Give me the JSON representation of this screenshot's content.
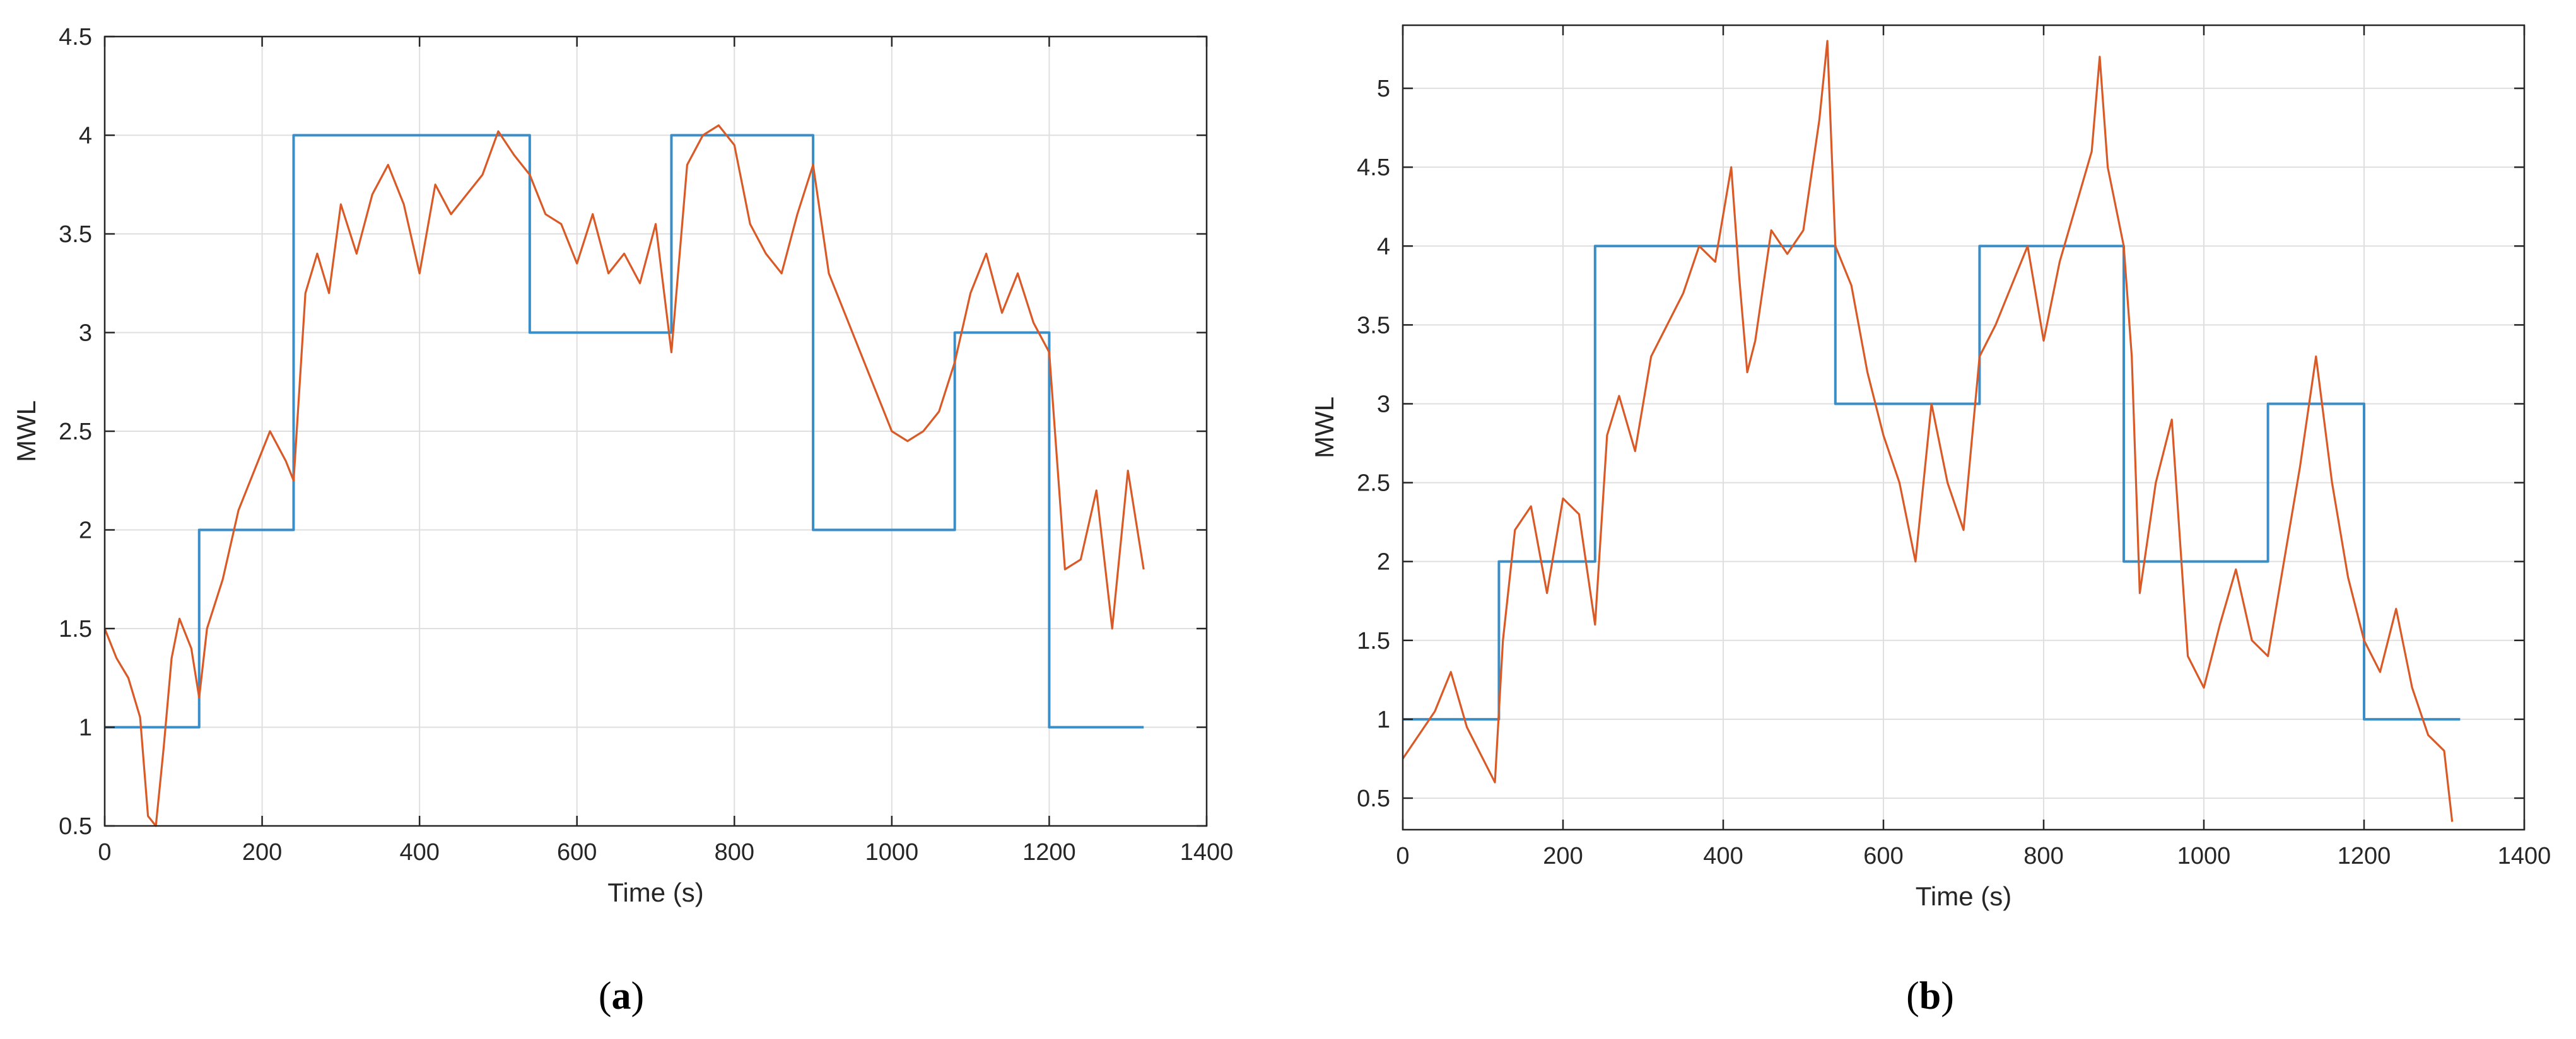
{
  "colors": {
    "target": "#3a8ec8",
    "measured": "#d95a26",
    "grid": "#dfdfdf",
    "axis": "#262626"
  },
  "chart_data": [
    {
      "type": "line",
      "panel_label": "a",
      "xlabel": "Time (s)",
      "ylabel": "MWL",
      "xlim": [
        0,
        1400
      ],
      "ylim": [
        0.5,
        4.5
      ],
      "xticks": [
        0,
        200,
        400,
        600,
        800,
        1000,
        1200,
        1400
      ],
      "yticks": [
        0.5,
        1,
        1.5,
        2,
        2.5,
        3,
        3.5,
        4,
        4.5
      ],
      "grid": true,
      "series": [
        {
          "color": "#3a8ec8",
          "style": "step",
          "x": [
            0,
            120,
            240,
            540,
            720,
            900,
            1080,
            1200,
            1320
          ],
          "y": [
            1,
            2,
            4,
            3,
            4,
            2,
            3,
            1,
            1
          ]
        },
        {
          "color": "#d95a26",
          "style": "line",
          "x": [
            0,
            15,
            30,
            45,
            55,
            65,
            75,
            85,
            95,
            110,
            120,
            130,
            150,
            170,
            190,
            210,
            230,
            240,
            255,
            270,
            285,
            300,
            320,
            340,
            360,
            380,
            400,
            420,
            440,
            460,
            480,
            500,
            520,
            540,
            560,
            580,
            600,
            620,
            640,
            660,
            680,
            700,
            720,
            740,
            760,
            780,
            800,
            820,
            840,
            860,
            880,
            900,
            920,
            940,
            960,
            980,
            1000,
            1020,
            1040,
            1060,
            1080,
            1100,
            1120,
            1140,
            1160,
            1180,
            1200,
            1220,
            1240,
            1260,
            1280,
            1300,
            1320
          ],
          "y": [
            1.5,
            1.35,
            1.25,
            1.05,
            0.55,
            0.5,
            0.9,
            1.35,
            1.55,
            1.4,
            1.15,
            1.5,
            1.75,
            2.1,
            2.3,
            2.5,
            2.35,
            2.25,
            3.2,
            3.4,
            3.2,
            3.65,
            3.4,
            3.7,
            3.85,
            3.65,
            3.3,
            3.75,
            3.6,
            3.7,
            3.8,
            4.02,
            3.9,
            3.8,
            3.6,
            3.55,
            3.35,
            3.6,
            3.3,
            3.4,
            3.25,
            3.55,
            2.9,
            3.85,
            4.0,
            4.05,
            3.95,
            3.55,
            3.4,
            3.3,
            3.6,
            3.85,
            3.3,
            3.1,
            2.9,
            2.7,
            2.5,
            2.45,
            2.5,
            2.6,
            2.85,
            3.2,
            3.4,
            3.1,
            3.3,
            3.05,
            2.9,
            1.8,
            1.85,
            2.2,
            1.5,
            2.3,
            1.8
          ]
        }
      ]
    },
    {
      "type": "line",
      "panel_label": "b",
      "xlabel": "Time (s)",
      "ylabel": "MWL",
      "xlim": [
        0,
        1400
      ],
      "ylim": [
        0.3,
        5.4
      ],
      "xticks": [
        0,
        200,
        400,
        600,
        800,
        1000,
        1200,
        1400
      ],
      "yticks": [
        0.5,
        1,
        1.5,
        2,
        2.5,
        3,
        3.5,
        4,
        4.5,
        5
      ],
      "grid": true,
      "series": [
        {
          "color": "#3a8ec8",
          "style": "step",
          "x": [
            0,
            120,
            240,
            540,
            720,
            900,
            1080,
            1200,
            1320
          ],
          "y": [
            1,
            2,
            4,
            3,
            4,
            2,
            3,
            1,
            1
          ]
        },
        {
          "color": "#d95a26",
          "style": "line",
          "x": [
            0,
            20,
            40,
            60,
            80,
            100,
            115,
            125,
            140,
            160,
            180,
            200,
            220,
            240,
            255,
            270,
            290,
            310,
            330,
            350,
            370,
            390,
            410,
            420,
            430,
            440,
            460,
            480,
            500,
            520,
            530,
            540,
            560,
            580,
            600,
            620,
            640,
            660,
            680,
            700,
            720,
            740,
            760,
            780,
            800,
            820,
            840,
            860,
            870,
            880,
            900,
            910,
            920,
            940,
            960,
            980,
            1000,
            1020,
            1040,
            1060,
            1080,
            1100,
            1120,
            1140,
            1160,
            1180,
            1200,
            1220,
            1240,
            1260,
            1280,
            1300,
            1310
          ],
          "y": [
            0.75,
            0.9,
            1.05,
            1.3,
            0.95,
            0.75,
            0.6,
            1.5,
            2.2,
            2.35,
            1.8,
            2.4,
            2.3,
            1.6,
            2.8,
            3.05,
            2.7,
            3.3,
            3.5,
            3.7,
            4.0,
            3.9,
            4.5,
            3.8,
            3.2,
            3.4,
            4.1,
            3.95,
            4.1,
            4.8,
            5.3,
            4.0,
            3.75,
            3.2,
            2.8,
            2.5,
            2.0,
            3.0,
            2.5,
            2.2,
            3.3,
            3.5,
            3.75,
            4.0,
            3.4,
            3.9,
            4.25,
            4.6,
            5.2,
            4.5,
            4.0,
            3.3,
            1.8,
            2.5,
            2.9,
            1.4,
            1.2,
            1.6,
            1.95,
            1.5,
            1.4,
            2.0,
            2.6,
            3.3,
            2.5,
            1.9,
            1.5,
            1.3,
            1.7,
            1.2,
            0.9,
            0.8,
            0.35
          ]
        }
      ]
    }
  ]
}
